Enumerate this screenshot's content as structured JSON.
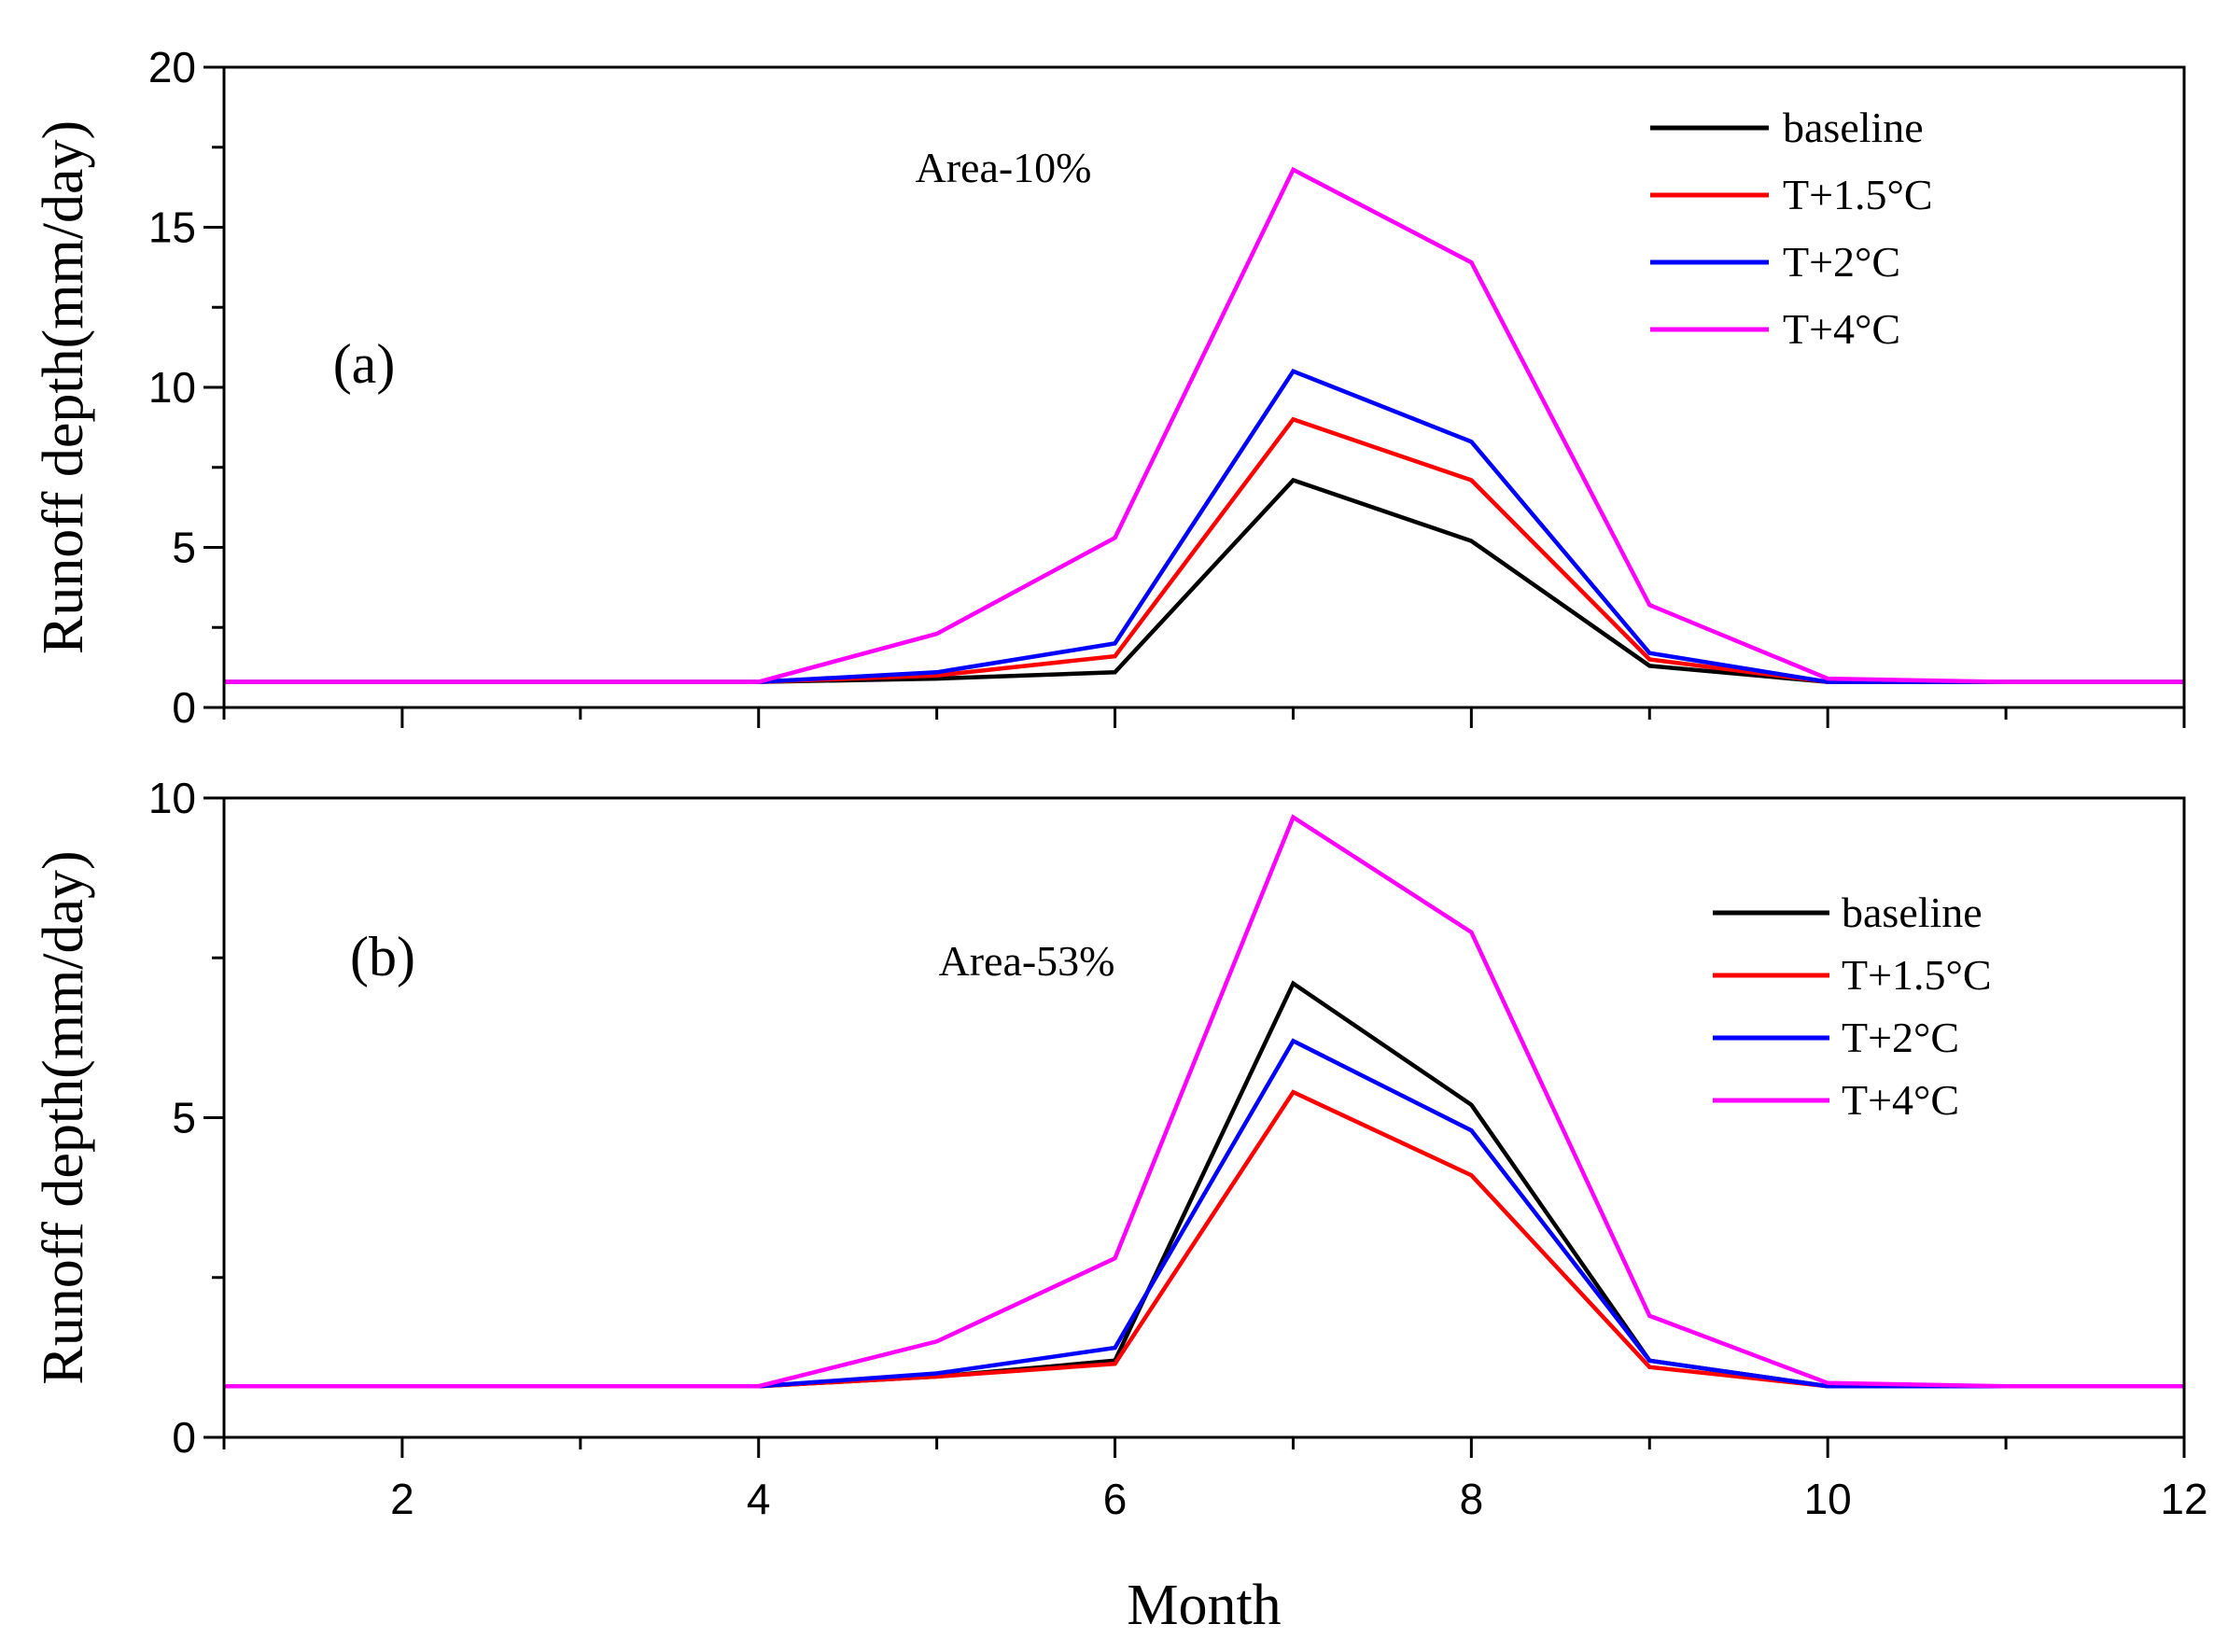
{
  "chart_data": [
    {
      "type": "line",
      "panel_label": "(a)",
      "annotation": "Area-10%",
      "xlabel": "",
      "ylabel": "Runoff depth(mm/day)",
      "xlim": [
        1,
        12
      ],
      "ylim": [
        0,
        20
      ],
      "xticks": [
        2,
        4,
        6,
        8,
        10,
        12
      ],
      "yticks": [
        0,
        5,
        10,
        15,
        20
      ],
      "show_x_tick_labels": false,
      "legend_position": "top-right",
      "x": [
        1,
        2,
        3,
        4,
        5,
        6,
        7,
        8,
        9,
        10,
        11,
        12
      ],
      "series": [
        {
          "name": "baseline",
          "color": "#000000",
          "values": [
            0.8,
            0.8,
            0.8,
            0.8,
            0.9,
            1.1,
            7.1,
            5.2,
            1.3,
            0.8,
            0.8,
            0.8
          ]
        },
        {
          "name": "T+1.5°C",
          "color": "#ff0000",
          "values": [
            0.8,
            0.8,
            0.8,
            0.8,
            1.0,
            1.6,
            9.0,
            7.1,
            1.5,
            0.8,
            0.8,
            0.8
          ]
        },
        {
          "name": "T+2°C",
          "color": "#0000ff",
          "values": [
            0.8,
            0.8,
            0.8,
            0.8,
            1.1,
            2.0,
            10.5,
            8.3,
            1.7,
            0.8,
            0.8,
            0.8
          ]
        },
        {
          "name": "T+4°C",
          "color": "#ff00ff",
          "values": [
            0.8,
            0.8,
            0.8,
            0.8,
            2.3,
            5.3,
            16.8,
            13.9,
            3.2,
            0.9,
            0.8,
            0.8
          ]
        }
      ]
    },
    {
      "type": "line",
      "panel_label": "(b)",
      "annotation": "Area-53%",
      "xlabel": "Month",
      "ylabel": "Runoff depth(mm/day)",
      "xlim": [
        1,
        12
      ],
      "ylim": [
        0,
        10
      ],
      "xticks": [
        2,
        4,
        6,
        8,
        10,
        12
      ],
      "yticks": [
        0,
        5,
        10
      ],
      "show_x_tick_labels": true,
      "legend_position": "top-right",
      "x": [
        1,
        2,
        3,
        4,
        5,
        6,
        7,
        8,
        9,
        10,
        11,
        12
      ],
      "series": [
        {
          "name": "baseline",
          "color": "#000000",
          "values": [
            0.8,
            0.8,
            0.8,
            0.8,
            0.95,
            1.2,
            7.1,
            5.2,
            1.2,
            0.8,
            0.8,
            0.8
          ]
        },
        {
          "name": "T+1.5°C",
          "color": "#ff0000",
          "values": [
            0.8,
            0.8,
            0.8,
            0.8,
            0.95,
            1.15,
            5.4,
            4.1,
            1.1,
            0.8,
            0.8,
            0.8
          ]
        },
        {
          "name": "T+2°C",
          "color": "#0000ff",
          "values": [
            0.8,
            0.8,
            0.8,
            0.8,
            1.0,
            1.4,
            6.2,
            4.8,
            1.2,
            0.8,
            0.8,
            0.8
          ]
        },
        {
          "name": "T+4°C",
          "color": "#ff00ff",
          "values": [
            0.8,
            0.8,
            0.8,
            0.8,
            1.5,
            2.8,
            9.7,
            7.9,
            1.9,
            0.85,
            0.8,
            0.8
          ]
        }
      ]
    }
  ]
}
